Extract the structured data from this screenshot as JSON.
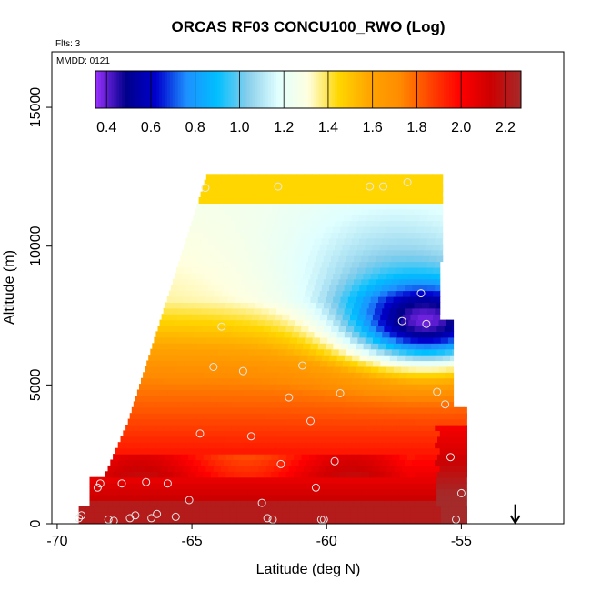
{
  "chart_data": {
    "type": "heatmap",
    "title": "ORCAS RF03 CONCU100_RWO (Log)",
    "flights_note": "Flts: 3",
    "date_note": "MMDD: 0121",
    "xlabel": "Latitude (deg N)",
    "ylabel": "Altitude (m)",
    "xlim": [
      -70.2,
      -51.2
    ],
    "ylim": [
      0,
      17000
    ],
    "x_ticks": [
      -70,
      -65,
      -60,
      -55
    ],
    "y_ticks": [
      0,
      5000,
      10000,
      15000
    ],
    "colorbar": {
      "range": [
        0.35,
        2.27
      ],
      "ticks": [
        0.4,
        0.6,
        0.8,
        1.0,
        1.2,
        1.4,
        1.6,
        1.8,
        2.0,
        2.2
      ],
      "tick_labels": [
        "0.4",
        "0.6",
        "0.8",
        "1.0",
        "1.2",
        "1.4",
        "1.6",
        "1.8",
        "2.0",
        "2.2"
      ],
      "colors": [
        "#9b30ff",
        "#00008b",
        "#0000cd",
        "#1e90ff",
        "#00bfff",
        "#87ceeb",
        "#e0ffff",
        "#ffffe0",
        "#ffd700",
        "#ffa500",
        "#ff8c00",
        "#ff4500",
        "#ff0000",
        "#cd0000",
        "#a52a2a"
      ]
    },
    "field_description": "log10 concentration; high (red ~2.2) near surface, decreasing with altitude to ~1.3-1.4 above 8 km; minimum (blue ~0.5) near -56.5 deg N, 6-8 km",
    "observations": [
      {
        "x": -69.2,
        "y": 200
      },
      {
        "x": -69.1,
        "y": 300
      },
      {
        "x": -68.5,
        "y": 1300
      },
      {
        "x": -68.4,
        "y": 1450
      },
      {
        "x": -68.1,
        "y": 150
      },
      {
        "x": -67.9,
        "y": 100
      },
      {
        "x": -67.6,
        "y": 1450
      },
      {
        "x": -67.3,
        "y": 200
      },
      {
        "x": -67.1,
        "y": 300
      },
      {
        "x": -66.7,
        "y": 1500
      },
      {
        "x": -66.5,
        "y": 200
      },
      {
        "x": -66.3,
        "y": 350
      },
      {
        "x": -65.9,
        "y": 1450
      },
      {
        "x": -65.6,
        "y": 250
      },
      {
        "x": -65.1,
        "y": 850
      },
      {
        "x": -64.7,
        "y": 3250
      },
      {
        "x": -64.5,
        "y": 12100
      },
      {
        "x": -64.2,
        "y": 5650
      },
      {
        "x": -63.9,
        "y": 7100
      },
      {
        "x": -63.1,
        "y": 5500
      },
      {
        "x": -62.8,
        "y": 3150
      },
      {
        "x": -62.4,
        "y": 750
      },
      {
        "x": -62.2,
        "y": 200
      },
      {
        "x": -62.0,
        "y": 150
      },
      {
        "x": -61.8,
        "y": 12150
      },
      {
        "x": -61.7,
        "y": 2150
      },
      {
        "x": -61.4,
        "y": 4550
      },
      {
        "x": -60.9,
        "y": 5700
      },
      {
        "x": -60.6,
        "y": 3700
      },
      {
        "x": -60.4,
        "y": 1300
      },
      {
        "x": -60.2,
        "y": 150
      },
      {
        "x": -60.1,
        "y": 150
      },
      {
        "x": -59.7,
        "y": 2250
      },
      {
        "x": -59.5,
        "y": 4700
      },
      {
        "x": -58.4,
        "y": 12150
      },
      {
        "x": -57.9,
        "y": 12150
      },
      {
        "x": -57.2,
        "y": 7300
      },
      {
        "x": -57.0,
        "y": 12300
      },
      {
        "x": -56.5,
        "y": 8300
      },
      {
        "x": -56.3,
        "y": 7200
      },
      {
        "x": -55.9,
        "y": 4750
      },
      {
        "x": -55.6,
        "y": 4300
      },
      {
        "x": -55.4,
        "y": 2400
      },
      {
        "x": -55.2,
        "y": 150
      },
      {
        "x": -55.0,
        "y": 1100
      }
    ],
    "arrow_marker": {
      "x": -53.0,
      "y_from": 700,
      "y_to": 0
    }
  }
}
